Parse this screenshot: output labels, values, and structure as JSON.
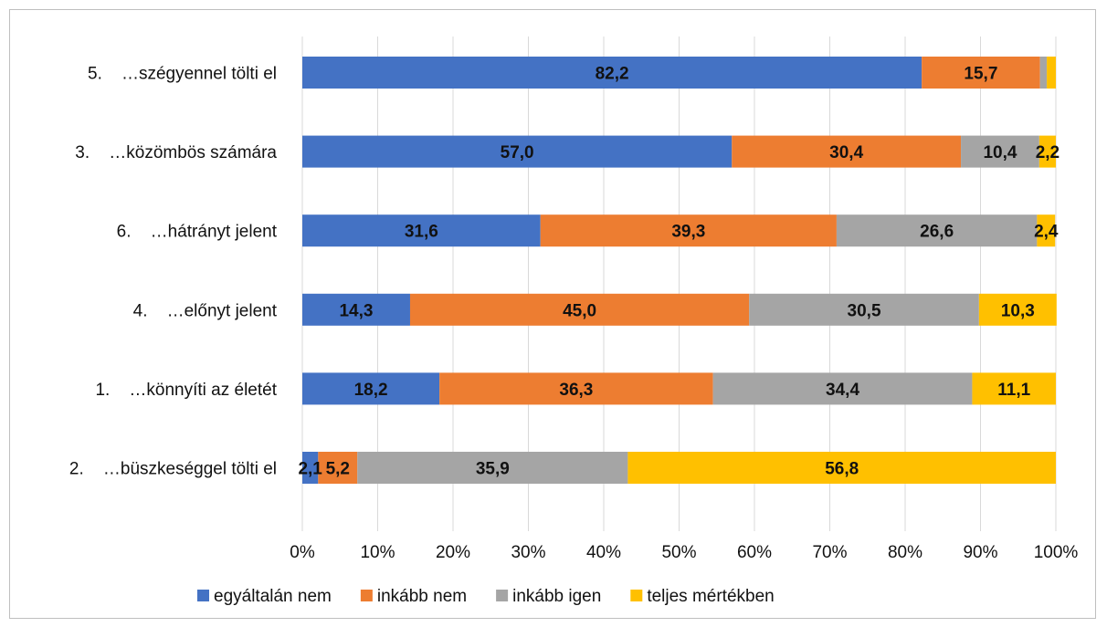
{
  "chart_data": {
    "type": "bar",
    "orientation": "horizontal",
    "stacked": "percent",
    "categories": [
      "5.    …szégyennel tölti el",
      "3.    …közömbös számára",
      "6.    …hátrányt jelent",
      "4.    …előnyt jelent",
      "1.    …könnyíti az életét",
      "2.    …büszkeséggel tölti el"
    ],
    "series": [
      {
        "name": "egyáltalán nem",
        "color": "#4472c4",
        "values": [
          82.2,
          57.0,
          31.6,
          14.3,
          18.2,
          2.1
        ],
        "labels": [
          "82,2",
          "57,0",
          "31,6",
          "14,3",
          "18,2",
          "2,1"
        ]
      },
      {
        "name": "inkább nem",
        "color": "#ed7d31",
        "values": [
          15.7,
          30.4,
          39.3,
          45.0,
          36.3,
          5.2
        ],
        "labels": [
          "15,7",
          "30,4",
          "39,3",
          "45,0",
          "36,3",
          "5,2"
        ]
      },
      {
        "name": "inkább igen",
        "color": "#a5a5a5",
        "values": [
          0.9,
          10.4,
          26.6,
          30.5,
          34.4,
          35.9
        ],
        "labels": [
          "",
          "10,4",
          "26,6",
          "30,5",
          "34,4",
          "35,9"
        ]
      },
      {
        "name": "teljes mértékben",
        "color": "#ffc000",
        "values": [
          1.2,
          2.2,
          2.4,
          10.3,
          11.1,
          56.8
        ],
        "labels": [
          "",
          "2,2",
          "2,4",
          "10,3",
          "11,1",
          "56,8"
        ]
      }
    ],
    "xlim": [
      0,
      100
    ],
    "x_ticks": [
      "0%",
      "10%",
      "20%",
      "30%",
      "40%",
      "50%",
      "60%",
      "70%",
      "80%",
      "90%",
      "100%"
    ],
    "grid": "vertical",
    "legend": "bottom"
  }
}
